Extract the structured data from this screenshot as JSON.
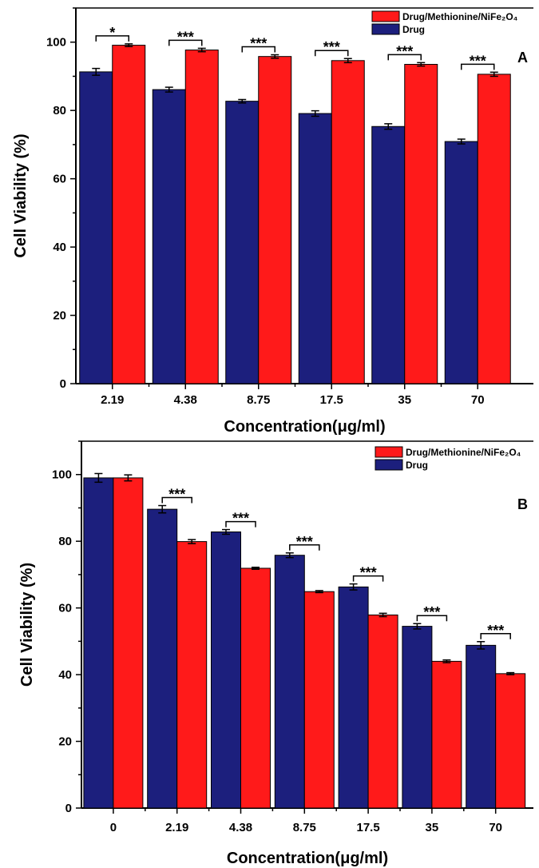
{
  "chart_data": [
    {
      "type": "bar",
      "panel_label": "A",
      "categories": [
        "2.19",
        "4.38",
        "8.75",
        "17.5",
        "35",
        "70"
      ],
      "series": [
        {
          "name": "Drug",
          "color": "#1c1f7d",
          "values": [
            91.3,
            86.1,
            82.7,
            79.1,
            75.3,
            70.9
          ],
          "errors": [
            1.0,
            0.7,
            0.5,
            0.8,
            0.8,
            0.7
          ]
        },
        {
          "name": "Drug/Methionine/NiFe₂O₄",
          "color": "#ff1a1a",
          "values": [
            99.1,
            97.7,
            95.8,
            94.6,
            93.5,
            90.6
          ],
          "errors": [
            0.4,
            0.5,
            0.5,
            0.6,
            0.5,
            0.6
          ]
        }
      ],
      "significance": [
        "*",
        "***",
        "***",
        "***",
        "***",
        "***"
      ],
      "xlabel": "Concentration(μg/ml)",
      "ylabel": "Cell Viability (%)",
      "ylim": [
        0,
        110
      ],
      "yticks": [
        "0",
        "20",
        "40",
        "60",
        "80",
        "100"
      ],
      "legend_position": "top-right",
      "grid": false
    },
    {
      "type": "bar",
      "panel_label": "B",
      "categories": [
        "0",
        "2.19",
        "4.38",
        "8.75",
        "17.5",
        "35",
        "70"
      ],
      "series": [
        {
          "name": "Drug",
          "color": "#1c1f7d",
          "values": [
            99.0,
            89.6,
            82.8,
            75.8,
            66.3,
            54.5,
            48.8
          ],
          "errors": [
            1.3,
            1.1,
            0.7,
            0.7,
            0.9,
            0.8,
            1.1
          ]
        },
        {
          "name": "Drug/Methionine/NiFe₂O₄",
          "color": "#ff1a1a",
          "values": [
            99.0,
            79.9,
            71.9,
            64.9,
            57.9,
            44.0,
            40.3
          ],
          "errors": [
            0.9,
            0.6,
            0.3,
            0.3,
            0.5,
            0.4,
            0.3
          ]
        }
      ],
      "significance": [
        "",
        "***",
        "***",
        "***",
        "***",
        "***",
        "***"
      ],
      "xlabel": "Concentration(μg/ml)",
      "ylabel": "Cell Viability (%)",
      "ylim": [
        0,
        110
      ],
      "yticks": [
        "0",
        "20",
        "40",
        "60",
        "80",
        "100"
      ],
      "legend_position": "top-right",
      "grid": false
    }
  ]
}
